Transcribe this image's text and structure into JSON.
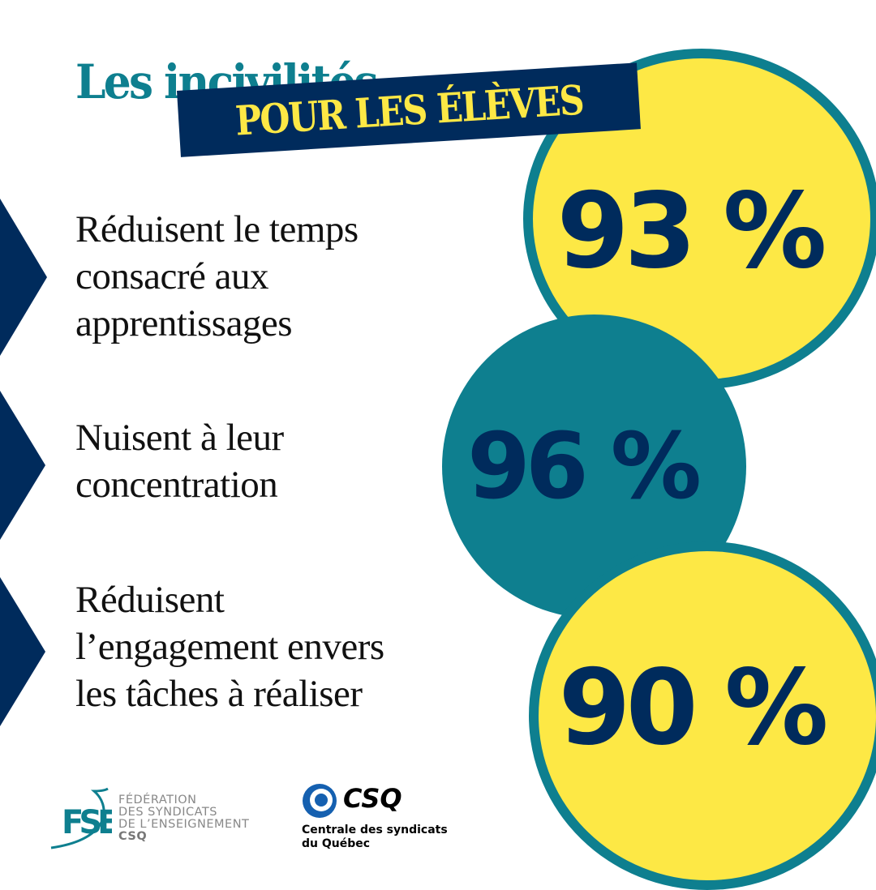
{
  "title": {
    "line1": "Les incivilités",
    "line2": "POUR LES ÉLÈVES"
  },
  "stats": [
    {
      "percent": "93 %",
      "statement": [
        "Réduisent le temps",
        "consacré aux",
        "apprentissages"
      ]
    },
    {
      "percent": "96 %",
      "statement": [
        "Nuisent à leur",
        "concentration"
      ]
    },
    {
      "percent": "90 %",
      "statement": [
        "Réduisent",
        "l’engagement envers",
        "les tâches à réaliser"
      ]
    }
  ],
  "logos": {
    "fse": {
      "mark": "FSE",
      "lines": [
        "FÉDÉRATION",
        "DES SYNDICATS",
        "DE L’ENSEIGNEMENT"
      ],
      "sub": "CSQ"
    },
    "csq": {
      "mark": "CSQ",
      "lines": [
        "Centrale des syndicats",
        "du Québec"
      ]
    }
  },
  "colors": {
    "teal": "#0e7f8f",
    "navy": "#002b5c",
    "yellow": "#fde845"
  }
}
